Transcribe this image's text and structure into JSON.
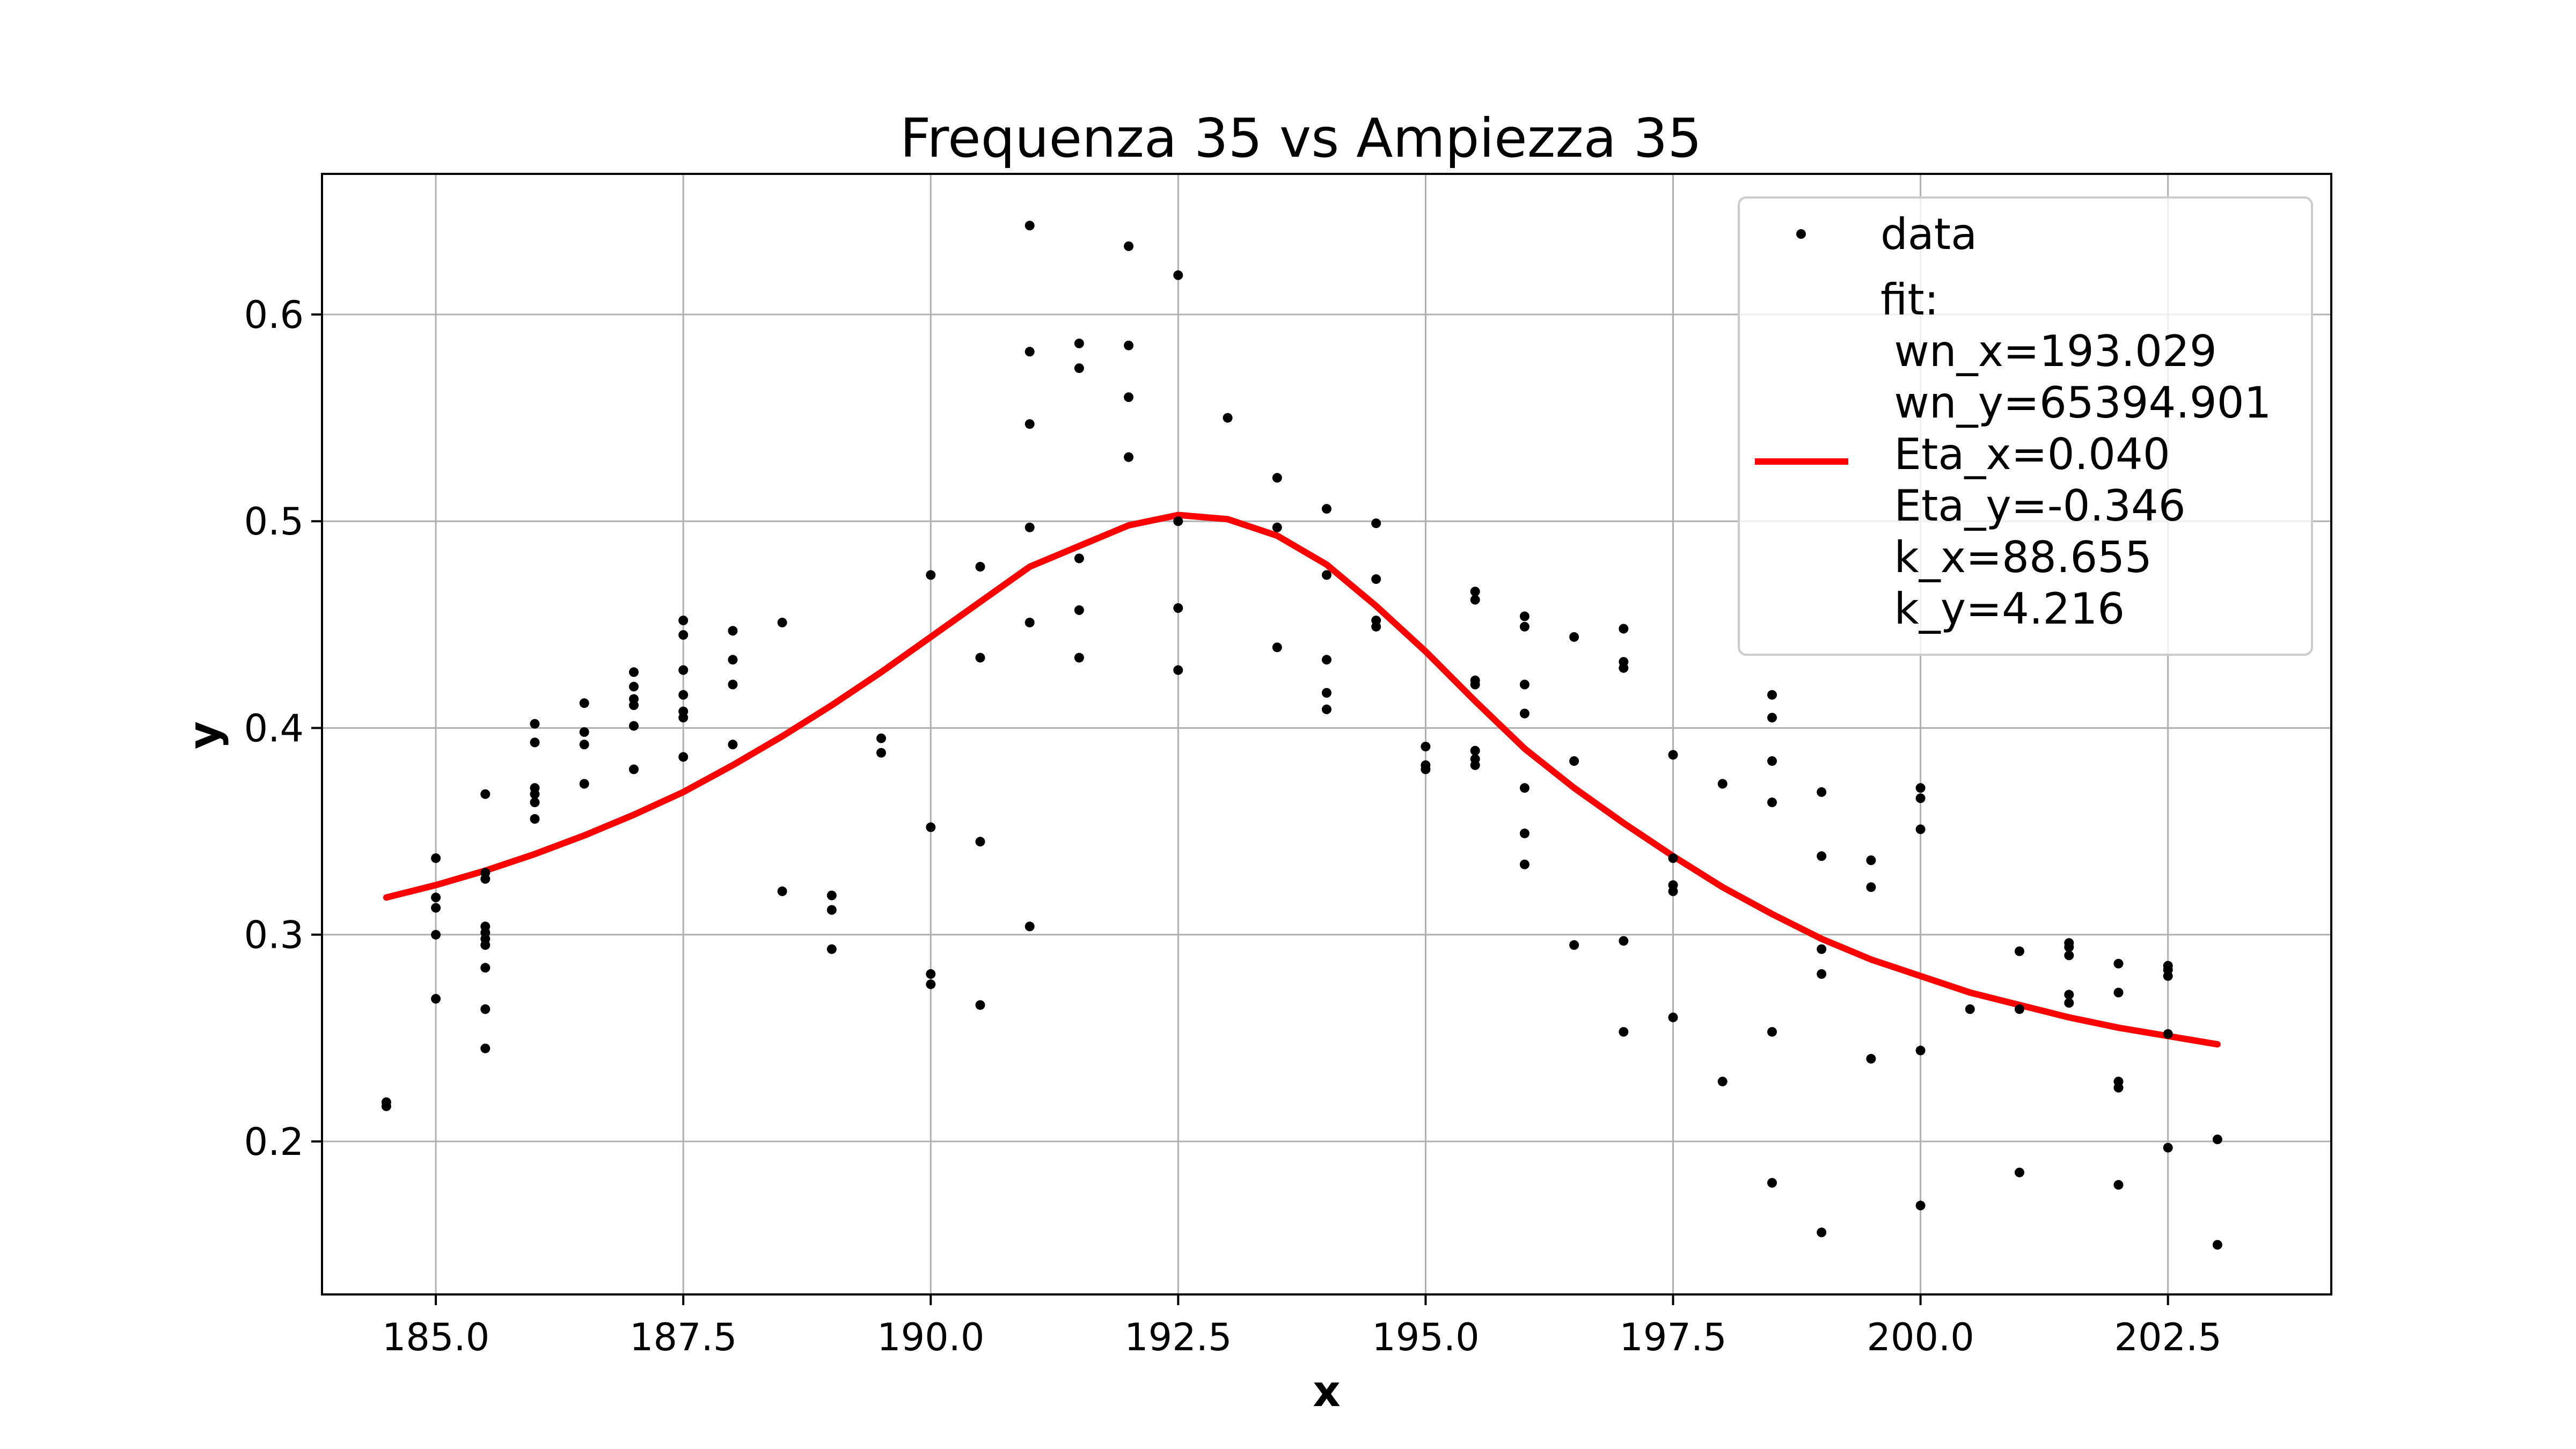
{
  "chart_data": {
    "type": "scatter",
    "title": "Frequenza 35 vs Ampiezza 35",
    "xlabel": "x",
    "ylabel": "y",
    "xlim": [
      183.85,
      204.15
    ],
    "ylim": [
      0.126,
      0.668
    ],
    "x_ticks": [
      185.0,
      187.5,
      190.0,
      192.5,
      195.0,
      197.5,
      200.0,
      202.5
    ],
    "x_tick_labels": [
      "185.0",
      "187.5",
      "190.0",
      "192.5",
      "195.0",
      "197.5",
      "200.0",
      "202.5"
    ],
    "y_ticks": [
      0.2,
      0.3,
      0.4,
      0.5,
      0.6
    ],
    "y_tick_labels": [
      "0.2",
      "0.3",
      "0.4",
      "0.5",
      "0.6"
    ],
    "grid": true,
    "legend_placement": "top-right",
    "series": [
      {
        "name": "data",
        "kind": "points",
        "color": "#000000",
        "points": [
          [
            184.5,
            0.219
          ],
          [
            184.5,
            0.217
          ],
          [
            185.0,
            0.337
          ],
          [
            185.0,
            0.318
          ],
          [
            185.0,
            0.313
          ],
          [
            185.0,
            0.3
          ],
          [
            185.0,
            0.269
          ],
          [
            185.5,
            0.368
          ],
          [
            185.5,
            0.33
          ],
          [
            185.5,
            0.327
          ],
          [
            185.5,
            0.304
          ],
          [
            185.5,
            0.301
          ],
          [
            185.5,
            0.298
          ],
          [
            185.5,
            0.295
          ],
          [
            185.5,
            0.284
          ],
          [
            185.5,
            0.264
          ],
          [
            185.5,
            0.245
          ],
          [
            186.0,
            0.402
          ],
          [
            186.0,
            0.393
          ],
          [
            186.0,
            0.371
          ],
          [
            186.0,
            0.368
          ],
          [
            186.0,
            0.364
          ],
          [
            186.0,
            0.356
          ],
          [
            186.5,
            0.412
          ],
          [
            186.5,
            0.398
          ],
          [
            186.5,
            0.392
          ],
          [
            186.5,
            0.373
          ],
          [
            187.0,
            0.427
          ],
          [
            187.0,
            0.42
          ],
          [
            187.0,
            0.414
          ],
          [
            187.0,
            0.411
          ],
          [
            187.0,
            0.401
          ],
          [
            187.0,
            0.38
          ],
          [
            187.5,
            0.452
          ],
          [
            187.5,
            0.445
          ],
          [
            187.5,
            0.428
          ],
          [
            187.5,
            0.416
          ],
          [
            187.5,
            0.408
          ],
          [
            187.5,
            0.405
          ],
          [
            187.5,
            0.386
          ],
          [
            188.0,
            0.447
          ],
          [
            188.0,
            0.433
          ],
          [
            188.0,
            0.421
          ],
          [
            188.0,
            0.392
          ],
          [
            188.5,
            0.451
          ],
          [
            188.5,
            0.321
          ],
          [
            189.0,
            0.319
          ],
          [
            189.0,
            0.312
          ],
          [
            189.0,
            0.293
          ],
          [
            189.5,
            0.395
          ],
          [
            189.5,
            0.388
          ],
          [
            190.0,
            0.474
          ],
          [
            190.0,
            0.352
          ],
          [
            190.0,
            0.281
          ],
          [
            190.0,
            0.276
          ],
          [
            190.5,
            0.478
          ],
          [
            190.5,
            0.434
          ],
          [
            190.5,
            0.345
          ],
          [
            190.5,
            0.266
          ],
          [
            191.0,
            0.643
          ],
          [
            191.0,
            0.582
          ],
          [
            191.0,
            0.547
          ],
          [
            191.0,
            0.497
          ],
          [
            191.0,
            0.451
          ],
          [
            191.0,
            0.304
          ],
          [
            191.5,
            0.586
          ],
          [
            191.5,
            0.574
          ],
          [
            191.5,
            0.482
          ],
          [
            191.5,
            0.457
          ],
          [
            191.5,
            0.434
          ],
          [
            192.0,
            0.633
          ],
          [
            192.0,
            0.585
          ],
          [
            192.0,
            0.56
          ],
          [
            192.0,
            0.531
          ],
          [
            192.5,
            0.619
          ],
          [
            192.5,
            0.5
          ],
          [
            192.5,
            0.458
          ],
          [
            192.5,
            0.428
          ],
          [
            193.0,
            0.55
          ],
          [
            193.5,
            0.521
          ],
          [
            193.5,
            0.497
          ],
          [
            193.5,
            0.439
          ],
          [
            194.0,
            0.506
          ],
          [
            194.0,
            0.474
          ],
          [
            194.0,
            0.433
          ],
          [
            194.0,
            0.417
          ],
          [
            194.0,
            0.409
          ],
          [
            194.5,
            0.499
          ],
          [
            194.5,
            0.472
          ],
          [
            194.5,
            0.452
          ],
          [
            194.5,
            0.449
          ],
          [
            195.0,
            0.391
          ],
          [
            195.0,
            0.382
          ],
          [
            195.0,
            0.38
          ],
          [
            195.5,
            0.466
          ],
          [
            195.5,
            0.462
          ],
          [
            195.5,
            0.423
          ],
          [
            195.5,
            0.421
          ],
          [
            195.5,
            0.389
          ],
          [
            195.5,
            0.385
          ],
          [
            195.5,
            0.382
          ],
          [
            196.0,
            0.454
          ],
          [
            196.0,
            0.449
          ],
          [
            196.0,
            0.421
          ],
          [
            196.0,
            0.407
          ],
          [
            196.0,
            0.371
          ],
          [
            196.0,
            0.349
          ],
          [
            196.0,
            0.334
          ],
          [
            196.5,
            0.444
          ],
          [
            196.5,
            0.384
          ],
          [
            196.5,
            0.295
          ],
          [
            197.0,
            0.448
          ],
          [
            197.0,
            0.432
          ],
          [
            197.0,
            0.429
          ],
          [
            197.0,
            0.297
          ],
          [
            197.0,
            0.253
          ],
          [
            197.5,
            0.387
          ],
          [
            197.5,
            0.337
          ],
          [
            197.5,
            0.324
          ],
          [
            197.5,
            0.321
          ],
          [
            197.5,
            0.26
          ],
          [
            198.0,
            0.373
          ],
          [
            198.0,
            0.229
          ],
          [
            198.5,
            0.416
          ],
          [
            198.5,
            0.405
          ],
          [
            198.5,
            0.384
          ],
          [
            198.5,
            0.364
          ],
          [
            198.5,
            0.253
          ],
          [
            198.5,
            0.18
          ],
          [
            199.0,
            0.369
          ],
          [
            199.0,
            0.338
          ],
          [
            199.0,
            0.293
          ],
          [
            199.0,
            0.281
          ],
          [
            199.0,
            0.156
          ],
          [
            199.5,
            0.336
          ],
          [
            199.5,
            0.323
          ],
          [
            199.5,
            0.24
          ],
          [
            200.0,
            0.371
          ],
          [
            200.0,
            0.366
          ],
          [
            200.0,
            0.351
          ],
          [
            200.0,
            0.244
          ],
          [
            200.0,
            0.169
          ],
          [
            200.5,
            0.264
          ],
          [
            201.0,
            0.292
          ],
          [
            201.0,
            0.264
          ],
          [
            201.0,
            0.185
          ],
          [
            201.5,
            0.296
          ],
          [
            201.5,
            0.294
          ],
          [
            201.5,
            0.29
          ],
          [
            201.5,
            0.271
          ],
          [
            201.5,
            0.267
          ],
          [
            202.0,
            0.286
          ],
          [
            202.0,
            0.272
          ],
          [
            202.0,
            0.229
          ],
          [
            202.0,
            0.226
          ],
          [
            202.0,
            0.179
          ],
          [
            202.5,
            0.285
          ],
          [
            202.5,
            0.283
          ],
          [
            202.5,
            0.28
          ],
          [
            202.5,
            0.252
          ],
          [
            202.5,
            0.197
          ],
          [
            203.0,
            0.201
          ],
          [
            203.0,
            0.15
          ]
        ]
      },
      {
        "name": "fit:\n wn_x=193.029\n wn_y=65394.901\n Eta_x=0.040\n Eta_y=-0.346\n k_x=88.655\n k_y=4.216",
        "legend_lines": [
          "fit:",
          " wn_x=193.029",
          " wn_y=65394.901",
          " Eta_x=0.040",
          " Eta_y=-0.346",
          " k_x=88.655",
          " k_y=4.216"
        ],
        "kind": "line",
        "color": "#ff0000",
        "x": [
          184.5,
          185.0,
          185.5,
          186.0,
          186.5,
          187.0,
          187.5,
          188.0,
          188.5,
          189.0,
          189.5,
          190.0,
          190.5,
          191.0,
          191.5,
          192.0,
          192.5,
          193.0,
          193.5,
          194.0,
          194.5,
          195.0,
          195.5,
          196.0,
          196.5,
          197.0,
          197.5,
          198.0,
          198.5,
          199.0,
          199.5,
          200.0,
          200.5,
          201.0,
          201.5,
          202.0,
          202.5,
          203.0
        ],
        "y": [
          0.318,
          0.324,
          0.331,
          0.339,
          0.348,
          0.358,
          0.369,
          0.382,
          0.396,
          0.411,
          0.427,
          0.444,
          0.461,
          0.478,
          0.488,
          0.498,
          0.503,
          0.501,
          0.493,
          0.479,
          0.459,
          0.437,
          0.413,
          0.39,
          0.371,
          0.354,
          0.338,
          0.323,
          0.31,
          0.298,
          0.288,
          0.28,
          0.272,
          0.266,
          0.26,
          0.255,
          0.251,
          0.247
        ]
      }
    ]
  }
}
